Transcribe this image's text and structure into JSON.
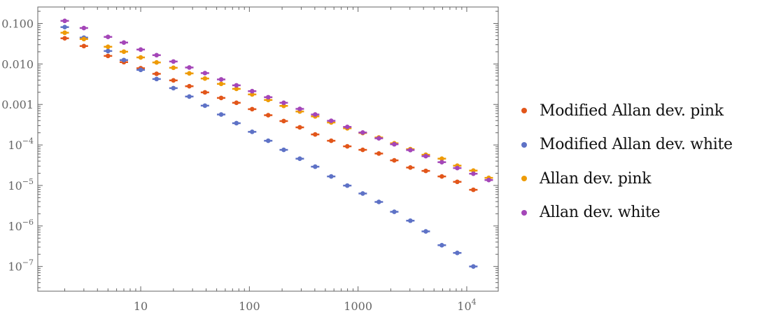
{
  "chart_data": {
    "type": "scatter",
    "title": "",
    "xlabel": "",
    "ylabel": "",
    "xscale": "log",
    "yscale": "log",
    "xlim": [
      1.13,
      19500
    ],
    "ylim": [
      2.45e-08,
      0.255
    ],
    "grid": false,
    "legend_position": "right",
    "x_ticks": [
      {
        "value": 10,
        "label": "10"
      },
      {
        "value": 100,
        "label": "100"
      },
      {
        "value": 1000,
        "label": "1000"
      },
      {
        "value": 10000,
        "label": "10",
        "sup": "4"
      }
    ],
    "y_ticks": [
      {
        "value": 0.1,
        "label": "0.100"
      },
      {
        "value": 0.01,
        "label": "0.010"
      },
      {
        "value": 0.001,
        "label": "0.001"
      },
      {
        "value": 0.0001,
        "label": "10",
        "sup": "−4"
      },
      {
        "value": 1e-05,
        "label": "10",
        "sup": "−5"
      },
      {
        "value": 1e-06,
        "label": "10",
        "sup": "−6"
      },
      {
        "value": 1e-07,
        "label": "10",
        "sup": "−7"
      }
    ],
    "x": [
      2,
      3,
      5,
      7,
      10,
      14,
      20,
      28,
      39,
      55,
      76,
      106,
      149,
      207,
      291,
      403,
      566,
      796,
      1104,
      1553,
      2154,
      3027,
      4199,
      5898,
      8180,
      11500,
      15950
    ],
    "series": [
      {
        "name": "Modified Allan dev. pink",
        "color": "#E2561A",
        "values": [
          0.043,
          0.0277,
          0.0158,
          0.0111,
          0.00785,
          0.00571,
          0.00393,
          0.00282,
          0.00199,
          0.00145,
          0.0011,
          0.000766,
          0.000543,
          0.000389,
          0.000272,
          0.000182,
          0.000127,
          9.25e-05,
          7.58e-05,
          6.14e-05,
          4.17e-05,
          2.77e-05,
          2.29e-05,
          1.67e-05,
          1.23e-05,
          7.82e-06,
          null
        ]
      },
      {
        "name": "Modified Allan dev. white",
        "color": "#5E72C6",
        "values": [
          0.0813,
          0.0447,
          0.0209,
          0.0125,
          0.00714,
          0.00425,
          0.00253,
          0.00157,
          0.000935,
          0.000565,
          0.000345,
          0.000211,
          0.000127,
          7.58e-05,
          4.58e-05,
          2.91e-05,
          1.67e-05,
          9.93e-06,
          6.33e-06,
          3.92e-06,
          2.24e-06,
          1.35e-06,
          7.35e-07,
          3.35e-07,
          2.16e-07,
          1e-07,
          null
        ]
      },
      {
        "name": "Allan dev. pink",
        "color": "#EE9B06",
        "values": [
          0.0591,
          0.0413,
          0.0266,
          0.0201,
          0.0145,
          0.0109,
          0.00805,
          0.00585,
          0.00437,
          0.00322,
          0.00243,
          0.00177,
          0.00129,
          0.000923,
          0.000671,
          0.000508,
          0.000359,
          0.000258,
          0.000197,
          0.000153,
          0.00011,
          7.88e-05,
          5.73e-05,
          4.59e-05,
          3.08e-05,
          2.33e-05,
          1.54e-05
        ]
      },
      {
        "name": "Allan dev. white",
        "color": "#A446B8",
        "values": [
          0.116,
          0.0772,
          0.0466,
          0.0338,
          0.0227,
          0.0165,
          0.0115,
          0.00818,
          0.00595,
          0.00415,
          0.00297,
          0.00213,
          0.00151,
          0.0011,
          0.000778,
          0.000565,
          0.000395,
          0.000279,
          0.000203,
          0.000146,
          0.000104,
          7.48e-05,
          5.29e-05,
          3.76e-05,
          2.69e-05,
          1.95e-05,
          1.36e-05
        ]
      }
    ]
  }
}
